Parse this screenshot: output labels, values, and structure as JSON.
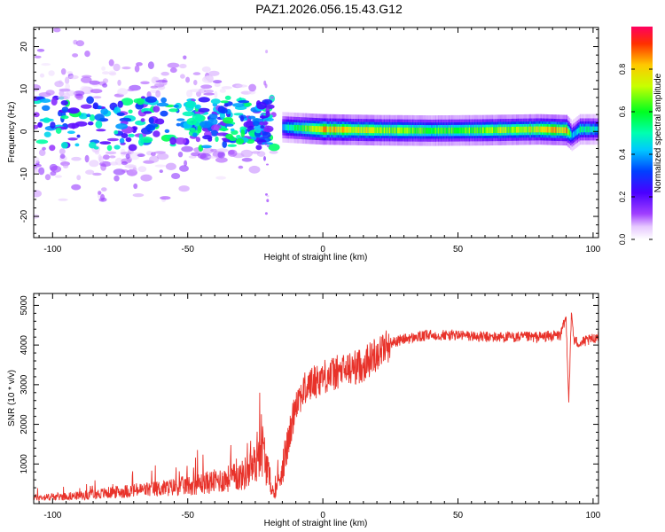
{
  "figure": {
    "title": "PAZ1.2026.056.15.43.G12"
  },
  "chart_data": [
    {
      "type": "heatmap",
      "xlabel": "Height of straight line (km)",
      "ylabel": "Frequency (Hz)",
      "xlim": [
        -107,
        102
      ],
      "ylim": [
        -25,
        24.5
      ],
      "xticks": [
        -100,
        -50,
        0,
        50,
        100
      ],
      "yticks": [
        -20,
        -10,
        0,
        10,
        20
      ],
      "colorbar": {
        "label": "Normalized spectral amplitude",
        "range": [
          0,
          1
        ],
        "ticks": [
          0.0,
          0.2,
          0.4,
          0.6,
          0.8
        ],
        "colormap": "rainbow-to-violet"
      },
      "ridge": {
        "x": [
          -15,
          0,
          20,
          40,
          60,
          80,
          90,
          92,
          95,
          102
        ],
        "frequency": [
          1.0,
          0.5,
          0.3,
          0.2,
          0.3,
          0.5,
          0.3,
          -1.0,
          0.5,
          0.5
        ],
        "amplitude": [
          0.45,
          0.85,
          0.75,
          0.65,
          0.7,
          0.8,
          0.85,
          0.4,
          0.55,
          0.5
        ]
      },
      "scatter_region": {
        "x_range": [
          -107,
          -18
        ],
        "frequency_range": [
          -25,
          24
        ],
        "peak_amplitude": 0.55
      },
      "grid": false
    },
    {
      "type": "line",
      "xlabel": "Height of straight line (km)",
      "ylabel": "SNR (10 * v/v)",
      "xlim": [
        -107,
        102
      ],
      "ylim": [
        0,
        5300
      ],
      "xticks": [
        -100,
        -50,
        0,
        50,
        100
      ],
      "yticks": [
        1000,
        2000,
        3000,
        4000,
        5000
      ],
      "color": "#e8322a",
      "series": [
        {
          "x": [
            -107,
            -100,
            -90,
            -80,
            -70,
            -60,
            -50,
            -40,
            -30,
            -25,
            -23,
            -20,
            -18,
            -15,
            -12,
            -10,
            -5,
            0,
            5,
            10,
            15,
            20,
            25,
            30,
            40,
            50,
            60,
            70,
            80,
            88,
            90,
            91,
            92,
            93,
            95,
            100,
            102
          ],
          "y": [
            150,
            170,
            200,
            270,
            330,
            380,
            460,
            560,
            700,
            1000,
            1600,
            700,
            200,
            900,
            1800,
            2600,
            3000,
            3200,
            3300,
            3400,
            3500,
            3800,
            4050,
            4150,
            4250,
            4250,
            4200,
            4200,
            4200,
            4250,
            4700,
            2600,
            4800,
            4100,
            4050,
            4150,
            4250
          ]
        }
      ],
      "grid": false
    }
  ]
}
